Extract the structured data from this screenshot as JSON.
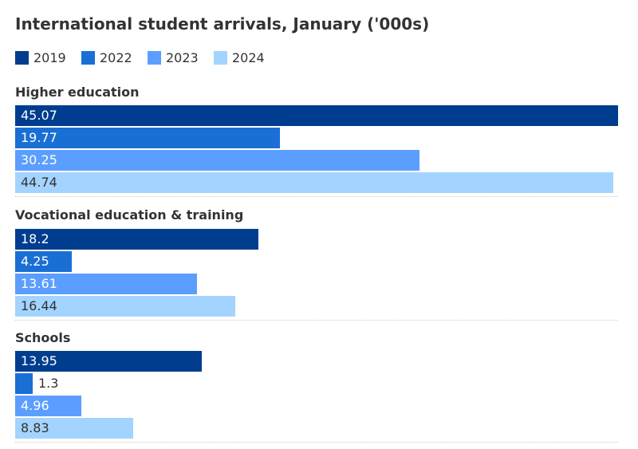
{
  "title": "International student arrivals, January ('000s)",
  "legend": [
    {
      "label": "2019",
      "color": "#003d8f"
    },
    {
      "label": "2022",
      "color": "#1a6fd4"
    },
    {
      "label": "2023",
      "color": "#5c9eff"
    },
    {
      "label": "2024",
      "color": "#a3d4ff"
    }
  ],
  "chart_data": {
    "type": "bar",
    "orientation": "horizontal",
    "title": "International student arrivals, January ('000s)",
    "xlim": [
      0,
      45.07
    ],
    "grid": false,
    "legend_position": "top-left",
    "series_names": [
      "2019",
      "2022",
      "2023",
      "2024"
    ],
    "groups": [
      {
        "name": "Higher education",
        "values": [
          45.07,
          19.77,
          30.25,
          44.74
        ],
        "labels": [
          "45.07",
          "19.77",
          "30.25",
          "44.74"
        ]
      },
      {
        "name": "Vocational education & training",
        "values": [
          18.2,
          4.25,
          13.61,
          16.44
        ],
        "labels": [
          "18.2",
          "4.25",
          "13.61",
          "16.44"
        ]
      },
      {
        "name": "Schools",
        "values": [
          13.95,
          1.3,
          4.96,
          8.83
        ],
        "labels": [
          "13.95",
          "1.3",
          "4.96",
          "8.83"
        ]
      }
    ]
  }
}
